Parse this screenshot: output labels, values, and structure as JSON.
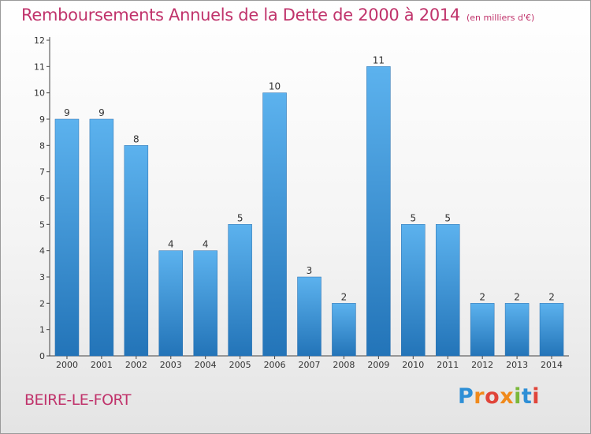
{
  "header": {
    "title": "Remboursements Annuels de la Dette de 2000 à 2014",
    "unit": "(en milliers d'€)"
  },
  "footer": {
    "commune": "BEIRE-LE-FORT",
    "logo": "Proxiti"
  },
  "colors": {
    "title": "#c0336b",
    "bar_top": "#5cb2ee",
    "bar_bottom": "#2374b8"
  },
  "chart_data": {
    "type": "bar",
    "categories": [
      "2000",
      "2001",
      "2002",
      "2003",
      "2004",
      "2005",
      "2006",
      "2007",
      "2008",
      "2009",
      "2010",
      "2011",
      "2012",
      "2013",
      "2014"
    ],
    "values": [
      9,
      9,
      8,
      4,
      4,
      5,
      10,
      3,
      2,
      11,
      5,
      5,
      2,
      2,
      2
    ],
    "data_labels": [
      "9",
      "9",
      "8",
      "4",
      "4",
      "5",
      "10",
      "3",
      "2",
      "11",
      "5",
      "5",
      "2",
      "2",
      "2"
    ],
    "y_ticks": [
      "0",
      "1",
      "2",
      "3",
      "4",
      "5",
      "6",
      "7",
      "8",
      "9",
      "10",
      "11",
      "12"
    ],
    "ylim": [
      0,
      12
    ],
    "grid": false,
    "legend": "none"
  }
}
